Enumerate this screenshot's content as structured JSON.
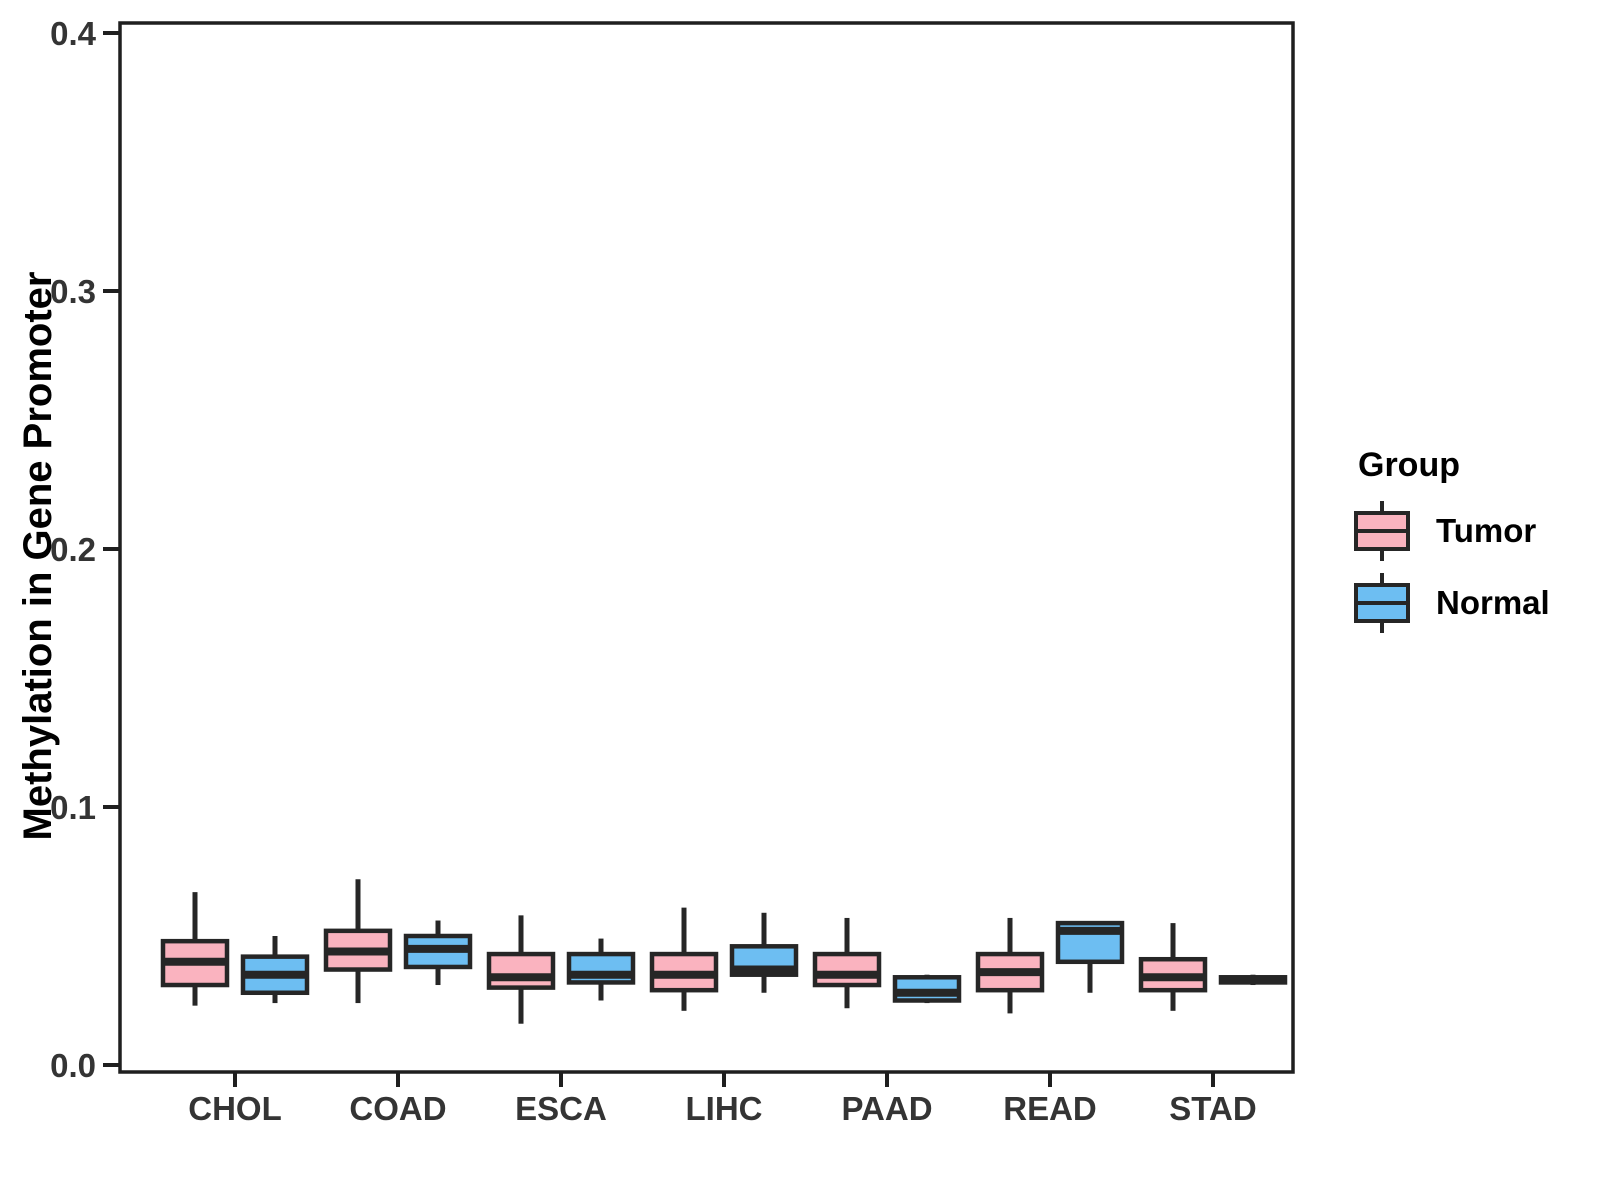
{
  "figure": {
    "background_color": "#FFFFFF",
    "panel_border_color": "#1F1F1F",
    "box_outline_color": "#262626",
    "tick_text_color": "#343434"
  },
  "legend": {
    "title": "Group",
    "position": "right",
    "items": [
      {
        "label": "Tumor",
        "color": "#FAB3BF"
      },
      {
        "label": "Normal",
        "color": "#6DBEF2"
      }
    ]
  },
  "chart_data": {
    "type": "grouped_boxplot",
    "title": "",
    "xlabel": "",
    "ylabel": "Methylation in Gene Promoter",
    "ylim": [
      0,
      0.4
    ],
    "yticks": [
      0.0,
      0.1,
      0.2,
      0.3,
      0.4
    ],
    "ytick_labels": [
      "0.0",
      "0.1",
      "0.2",
      "0.3",
      "0.4"
    ],
    "grid": false,
    "legend_position": "right",
    "categories": [
      "CHOL",
      "COAD",
      "ESCA",
      "LIHC",
      "PAAD",
      "READ",
      "STAD"
    ],
    "series": [
      {
        "name": "Tumor",
        "color": "#FAB3BF",
        "boxes": [
          {
            "whisker_low": 0.023,
            "q1": 0.031,
            "median": 0.04,
            "q3": 0.048,
            "whisker_high": 0.067
          },
          {
            "whisker_low": 0.024,
            "q1": 0.037,
            "median": 0.044,
            "q3": 0.052,
            "whisker_high": 0.072
          },
          {
            "whisker_low": 0.016,
            "q1": 0.03,
            "median": 0.034,
            "q3": 0.043,
            "whisker_high": 0.058
          },
          {
            "whisker_low": 0.021,
            "q1": 0.029,
            "median": 0.035,
            "q3": 0.043,
            "whisker_high": 0.061
          },
          {
            "whisker_low": 0.022,
            "q1": 0.031,
            "median": 0.035,
            "q3": 0.043,
            "whisker_high": 0.057
          },
          {
            "whisker_low": 0.02,
            "q1": 0.029,
            "median": 0.036,
            "q3": 0.043,
            "whisker_high": 0.057
          },
          {
            "whisker_low": 0.021,
            "q1": 0.029,
            "median": 0.034,
            "q3": 0.041,
            "whisker_high": 0.055
          }
        ]
      },
      {
        "name": "Normal",
        "color": "#6DBEF2",
        "boxes": [
          {
            "whisker_low": 0.024,
            "q1": 0.028,
            "median": 0.035,
            "q3": 0.042,
            "whisker_high": 0.05
          },
          {
            "whisker_low": 0.031,
            "q1": 0.038,
            "median": 0.045,
            "q3": 0.05,
            "whisker_high": 0.056
          },
          {
            "whisker_low": 0.025,
            "q1": 0.032,
            "median": 0.035,
            "q3": 0.043,
            "whisker_high": 0.049
          },
          {
            "whisker_low": 0.028,
            "q1": 0.035,
            "median": 0.037,
            "q3": 0.046,
            "whisker_high": 0.059
          },
          {
            "whisker_low": 0.024,
            "q1": 0.025,
            "median": 0.028,
            "q3": 0.034,
            "whisker_high": 0.035
          },
          {
            "whisker_low": 0.028,
            "q1": 0.04,
            "median": 0.052,
            "q3": 0.055,
            "whisker_high": 0.055
          },
          {
            "whisker_low": 0.031,
            "q1": 0.032,
            "median": 0.033,
            "q3": 0.034,
            "whisker_high": 0.035
          }
        ]
      }
    ]
  }
}
